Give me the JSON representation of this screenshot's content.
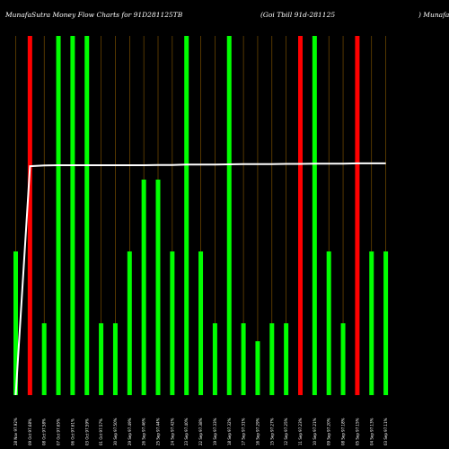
{
  "header": {
    "left": "MunafaSutra Money Flow Charts for 91D281125TB",
    "middle": "(Goi Tbill 91d-281125",
    "right": ") MunafaSutra.com"
  },
  "colors": {
    "background": "#000000",
    "up": "#00ff00",
    "down": "#ff0000",
    "line": "#ffffff",
    "grid": "#8b5a00"
  },
  "chart_data": {
    "type": "bar",
    "ylim": [
      0,
      100
    ],
    "bars": [
      {
        "label": "28 Nov 97.92%",
        "value": 40,
        "direction": "up"
      },
      {
        "label": "09 Oct 97.68%",
        "value": 100,
        "direction": "down"
      },
      {
        "label": "08 Oct 97.58%",
        "value": 20,
        "direction": "up"
      },
      {
        "label": "07 Oct 97.65%",
        "value": 100,
        "direction": "up"
      },
      {
        "label": "06 Oct 97.61%",
        "value": 100,
        "direction": "up"
      },
      {
        "label": "03 Oct 97.59%",
        "value": 100,
        "direction": "up"
      },
      {
        "label": "01 Oct 97.57%",
        "value": 20,
        "direction": "up"
      },
      {
        "label": "30 Sep 97.50%",
        "value": 20,
        "direction": "up"
      },
      {
        "label": "29 Sep 97.49%",
        "value": 40,
        "direction": "up"
      },
      {
        "label": "26 Sep 97.46%",
        "value": 60,
        "direction": "up"
      },
      {
        "label": "25 Sep 97.44%",
        "value": 60,
        "direction": "up"
      },
      {
        "label": "24 Sep 97.42%",
        "value": 40,
        "direction": "up"
      },
      {
        "label": "23 Sep 97.40%",
        "value": 100,
        "direction": "up"
      },
      {
        "label": "22 Sep 97.38%",
        "value": 40,
        "direction": "up"
      },
      {
        "label": "19 Sep 97.33%",
        "value": 20,
        "direction": "up"
      },
      {
        "label": "18 Sep 97.32%",
        "value": 100,
        "direction": "up"
      },
      {
        "label": "17 Sep 97.31%",
        "value": 20,
        "direction": "up"
      },
      {
        "label": "16 Sep 97.29%",
        "value": 15,
        "direction": "up"
      },
      {
        "label": "15 Sep 97.27%",
        "value": 20,
        "direction": "up"
      },
      {
        "label": "12 Sep 97.25%",
        "value": 20,
        "direction": "up"
      },
      {
        "label": "11 Sep 97.23%",
        "value": 100,
        "direction": "down"
      },
      {
        "label": "10 Sep 97.21%",
        "value": 100,
        "direction": "up"
      },
      {
        "label": "09 Sep 97.20%",
        "value": 40,
        "direction": "up"
      },
      {
        "label": "08 Sep 97.18%",
        "value": 20,
        "direction": "up"
      },
      {
        "label": "05 Sep 97.15%",
        "value": 100,
        "direction": "down"
      },
      {
        "label": "04 Sep 97.13%",
        "value": 40,
        "direction": "up"
      },
      {
        "label": "03 Sep 97.11%",
        "value": 40,
        "direction": "up"
      }
    ],
    "line": [
      0,
      97.3,
      97.6,
      97.7,
      97.7,
      97.7,
      97.7,
      97.7,
      97.7,
      97.7,
      97.8,
      97.8,
      98.0,
      98.0,
      98.0,
      98.1,
      98.2,
      98.2,
      98.2,
      98.3,
      98.3,
      98.4,
      98.4,
      98.4,
      98.5,
      98.5,
      98.5
    ]
  }
}
